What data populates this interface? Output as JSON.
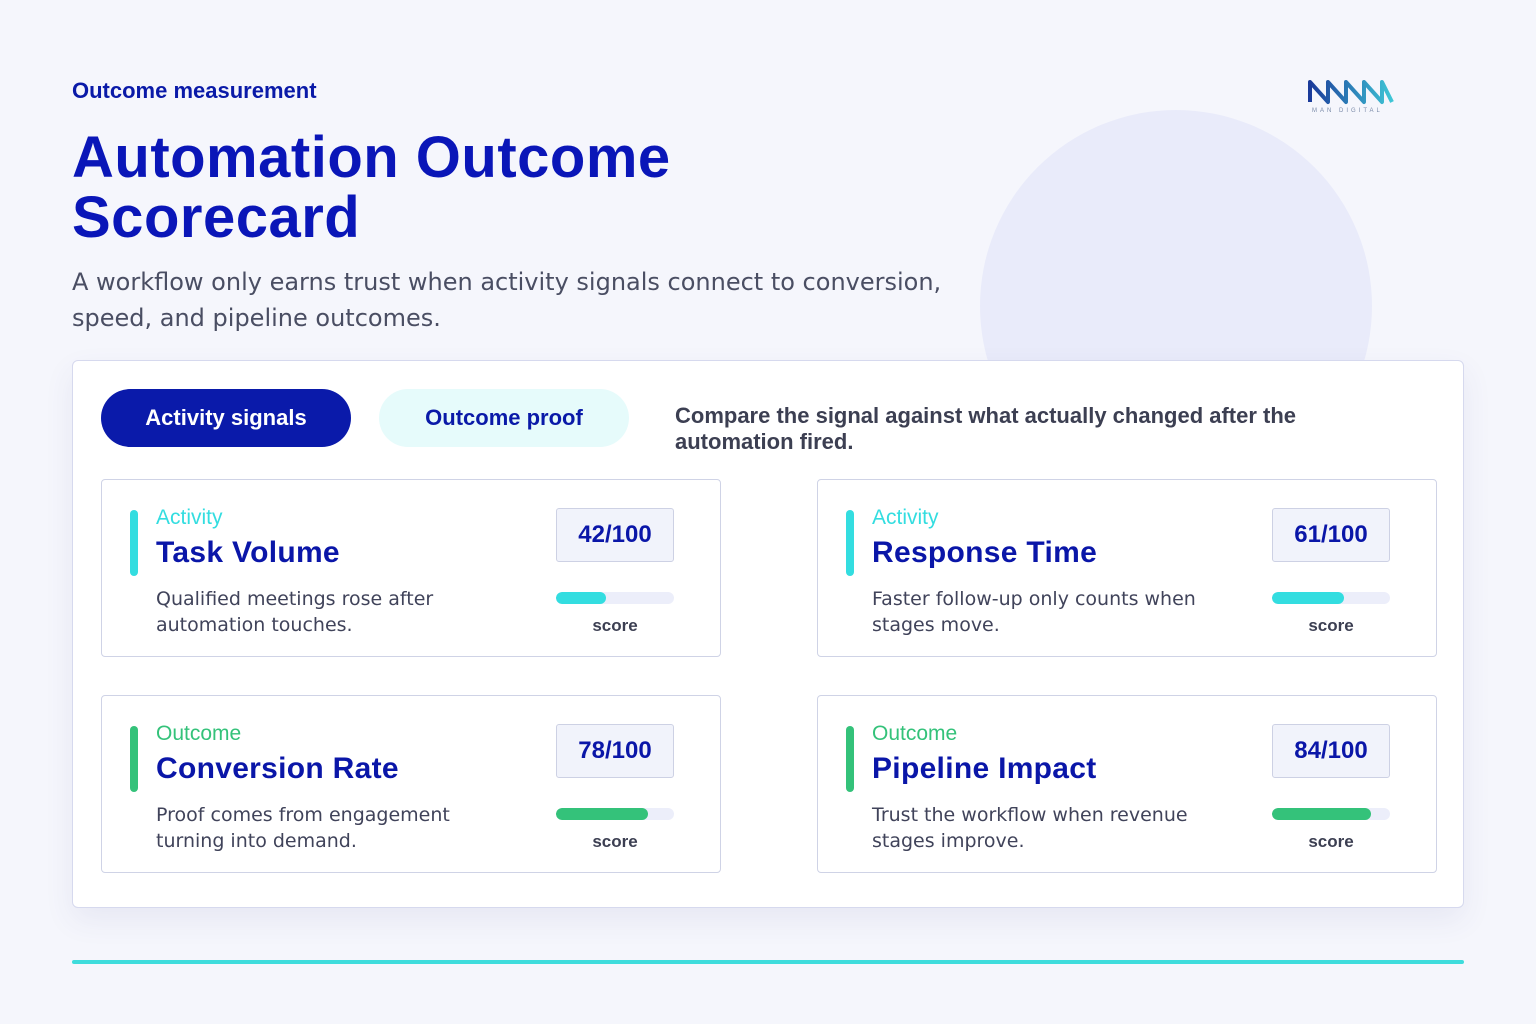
{
  "header": {
    "eyebrow": "Outcome measurement",
    "title": "Automation Outcome Scorecard",
    "subtitle": "A workflow only earns trust when activity signals connect to conversion, speed, and pipeline outcomes.",
    "logo_text": "MAN DIGITAL"
  },
  "panel": {
    "tabs": [
      {
        "label": "Activity signals",
        "active": true
      },
      {
        "label": "Outcome proof",
        "active": false
      }
    ],
    "note": "Compare the signal against what actually changed after the automation fired."
  },
  "colors": {
    "primary": "#0a1aaa",
    "activity": "#33dde0",
    "outcome": "#34c27a",
    "bottom_line": "#3edcdc"
  },
  "cards": [
    {
      "tag": "Activity",
      "name": "Task Volume",
      "desc": "Qualified meetings rose after automation touches.",
      "score": "42/100",
      "score_value": 42,
      "score_label": "score",
      "kind": "activity"
    },
    {
      "tag": "Activity",
      "name": "Response Time",
      "desc": "Faster follow-up only counts when stages move.",
      "score": "61/100",
      "score_value": 61,
      "score_label": "score",
      "kind": "activity"
    },
    {
      "tag": "Outcome",
      "name": "Conversion Rate",
      "desc": "Proof comes from engagement turning into demand.",
      "score": "78/100",
      "score_value": 78,
      "score_label": "score",
      "kind": "outcome"
    },
    {
      "tag": "Outcome",
      "name": "Pipeline Impact",
      "desc": "Trust the workflow when revenue stages improve.",
      "score": "84/100",
      "score_value": 84,
      "score_label": "score",
      "kind": "outcome"
    }
  ]
}
